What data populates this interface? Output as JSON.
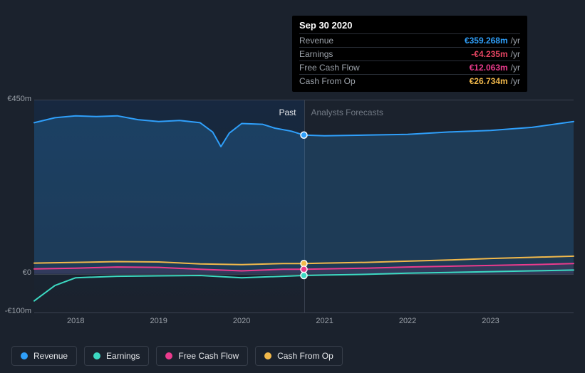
{
  "tooltip": {
    "date": "Sep 30 2020",
    "rows": [
      {
        "label": "Revenue",
        "value": "€359.268m",
        "unit": "/yr",
        "color": "#2f9ffa"
      },
      {
        "label": "Earnings",
        "value": "-€4.235m",
        "unit": "/yr",
        "color": "#e64562"
      },
      {
        "label": "Free Cash Flow",
        "value": "€12.063m",
        "unit": "/yr",
        "color": "#eb3b8d"
      },
      {
        "label": "Cash From Op",
        "value": "€26.734m",
        "unit": "/yr",
        "color": "#f2b94b"
      }
    ]
  },
  "chart": {
    "type": "line",
    "background_color": "#1b222d",
    "grid_color": "#3a4250",
    "past_shade_color": "rgba(10,60,120,0.25)",
    "x": {
      "min": 2017.5,
      "max": 2024.0,
      "split_at": 2020.75,
      "ticks": [
        2018,
        2019,
        2020,
        2021,
        2022,
        2023
      ],
      "tick_labels": [
        "2018",
        "2019",
        "2020",
        "2021",
        "2022",
        "2023"
      ]
    },
    "y": {
      "min": -100,
      "max": 450,
      "zero": 0,
      "ticks": [
        -100,
        0,
        450
      ],
      "tick_labels": [
        "-€100m",
        "€0",
        "€450m"
      ]
    },
    "periods": {
      "past_label": "Past",
      "forecast_label": "Analysts Forecasts"
    },
    "series": [
      {
        "name": "Revenue",
        "color": "#2f9ffa",
        "area_opacity": 0.2,
        "line_width": 2,
        "points": [
          [
            2017.5,
            392
          ],
          [
            2017.75,
            405
          ],
          [
            2018.0,
            410
          ],
          [
            2018.25,
            408
          ],
          [
            2018.5,
            410
          ],
          [
            2018.75,
            400
          ],
          [
            2019.0,
            395
          ],
          [
            2019.25,
            398
          ],
          [
            2019.5,
            392
          ],
          [
            2019.65,
            368
          ],
          [
            2019.75,
            330
          ],
          [
            2019.85,
            365
          ],
          [
            2020.0,
            390
          ],
          [
            2020.25,
            388
          ],
          [
            2020.4,
            378
          ],
          [
            2020.6,
            370
          ],
          [
            2020.75,
            360
          ],
          [
            2021.0,
            358
          ],
          [
            2021.5,
            360
          ],
          [
            2022.0,
            362
          ],
          [
            2022.5,
            368
          ],
          [
            2023.0,
            372
          ],
          [
            2023.5,
            380
          ],
          [
            2024.0,
            395
          ]
        ]
      },
      {
        "name": "Cash From Op",
        "color": "#f2b94b",
        "area_opacity": 0,
        "line_width": 2,
        "points": [
          [
            2017.5,
            28
          ],
          [
            2018.0,
            30
          ],
          [
            2018.5,
            32
          ],
          [
            2019.0,
            31
          ],
          [
            2019.5,
            26
          ],
          [
            2020.0,
            24
          ],
          [
            2020.5,
            27
          ],
          [
            2020.75,
            27
          ],
          [
            2021.0,
            28
          ],
          [
            2021.5,
            30
          ],
          [
            2022.0,
            33
          ],
          [
            2022.5,
            36
          ],
          [
            2023.0,
            40
          ],
          [
            2023.5,
            43
          ],
          [
            2024.0,
            46
          ]
        ]
      },
      {
        "name": "Free Cash Flow",
        "color": "#eb3b8d",
        "area_opacity": 0.1,
        "line_width": 2,
        "points": [
          [
            2017.5,
            13
          ],
          [
            2018.0,
            15
          ],
          [
            2018.5,
            18
          ],
          [
            2019.0,
            17
          ],
          [
            2019.5,
            12
          ],
          [
            2020.0,
            8
          ],
          [
            2020.5,
            12
          ],
          [
            2020.75,
            12
          ],
          [
            2021.0,
            13
          ],
          [
            2021.5,
            15
          ],
          [
            2022.0,
            18
          ],
          [
            2022.5,
            20
          ],
          [
            2023.0,
            22
          ],
          [
            2023.5,
            24
          ],
          [
            2024.0,
            27
          ]
        ]
      },
      {
        "name": "Earnings",
        "color": "#3cd9c2",
        "area_opacity": 0,
        "line_width": 2,
        "points": [
          [
            2017.5,
            -70
          ],
          [
            2017.75,
            -30
          ],
          [
            2018.0,
            -10
          ],
          [
            2018.5,
            -6
          ],
          [
            2019.0,
            -5
          ],
          [
            2019.5,
            -4
          ],
          [
            2020.0,
            -10
          ],
          [
            2020.5,
            -6
          ],
          [
            2020.75,
            -4
          ],
          [
            2021.0,
            -3
          ],
          [
            2021.5,
            -1
          ],
          [
            2022.0,
            2
          ],
          [
            2022.5,
            4
          ],
          [
            2023.0,
            6
          ],
          [
            2023.5,
            8
          ],
          [
            2024.0,
            10
          ]
        ]
      }
    ],
    "markers_at_split": true
  },
  "legend": [
    {
      "label": "Revenue",
      "color": "#2f9ffa"
    },
    {
      "label": "Earnings",
      "color": "#3cd9c2"
    },
    {
      "label": "Free Cash Flow",
      "color": "#eb3b8d"
    },
    {
      "label": "Cash From Op",
      "color": "#f2b94b"
    }
  ]
}
